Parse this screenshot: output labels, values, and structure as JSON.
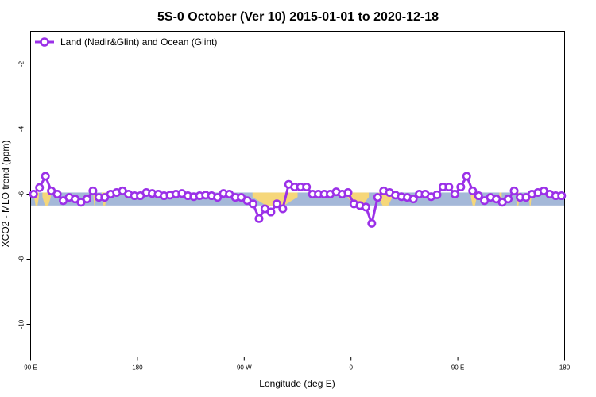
{
  "chart_data": {
    "type": "line",
    "title": "5S-0 October (Ver 10)   2015-01-01 to 2020-12-18",
    "xlabel": "Longitude (deg E)",
    "ylabel": "XCO2 - MLO trend (ppm)",
    "xlim": [
      90,
      540
    ],
    "ylim": [
      -11,
      -1.0
    ],
    "x_ticks": [
      {
        "value": 90,
        "label": "90 E"
      },
      {
        "value": 180,
        "label": "180"
      },
      {
        "value": 270,
        "label": "90 W"
      },
      {
        "value": 360,
        "label": "0"
      },
      {
        "value": 450,
        "label": "90 E"
      },
      {
        "value": 540,
        "label": "180"
      }
    ],
    "y_ticks": [
      {
        "value": -2,
        "label": "-2"
      },
      {
        "value": -4,
        "label": "-4"
      },
      {
        "value": -6,
        "label": "-6"
      },
      {
        "value": -8,
        "label": "-8"
      },
      {
        "value": -10,
        "label": "-10"
      }
    ],
    "legend": {
      "position": "top-left",
      "entries": [
        "Land (Nadir&Glint) and Ocean (Glint)"
      ]
    },
    "colors": {
      "series": "#9b30e8",
      "ocean_band": "#a4b8d8",
      "land_band": "#f6d77a"
    },
    "band": {
      "ymin": -6.35,
      "ymax": -5.95
    },
    "land_segments": [
      [
        93,
        97
      ],
      [
        100,
        107
      ],
      [
        143,
        145
      ],
      [
        150,
        154
      ],
      [
        277,
        315
      ],
      [
        357,
        375
      ],
      [
        383,
        395
      ],
      [
        461,
        466
      ],
      [
        485,
        487
      ],
      [
        499,
        502
      ],
      [
        510,
        512
      ]
    ],
    "series": [
      {
        "name": "Land (Nadir&Glint) and Ocean (Glint)",
        "x": [
          92.5,
          97.5,
          102.5,
          107.5,
          112.5,
          117.5,
          122.5,
          127.5,
          132.5,
          137.5,
          142.5,
          147.5,
          152.5,
          157.5,
          162.5,
          167.5,
          172.5,
          177.5,
          182.5,
          187.5,
          192.5,
          197.5,
          202.5,
          207.5,
          212.5,
          217.5,
          222.5,
          227.5,
          232.5,
          237.5,
          242.5,
          247.5,
          252.5,
          257.5,
          262.5,
          267.5,
          272.5,
          277.5,
          282.5,
          287.5,
          292.5,
          297.5,
          302.5,
          307.5,
          312.5,
          317.5,
          322.5,
          327.5,
          332.5,
          337.5,
          342.5,
          347.5,
          352.5,
          357.5,
          362.5,
          367.5,
          372.5,
          377.5,
          382.5,
          387.5,
          392.5,
          397.5,
          402.5,
          407.5,
          412.5,
          417.5,
          422.5,
          427.5,
          432.5,
          437.5,
          442.5,
          447.5,
          452.5,
          457.5,
          462.5,
          467.5,
          472.5,
          477.5,
          482.5,
          487.5,
          492.5,
          497.5,
          502.5,
          507.5,
          512.5,
          517.5,
          522.5,
          527.5,
          532.5,
          537.5
        ],
        "values": [
          -6.0,
          -5.8,
          -5.45,
          -5.9,
          -6.0,
          -6.2,
          -6.1,
          -6.15,
          -6.25,
          -6.15,
          -5.9,
          -6.1,
          -6.1,
          -6.0,
          -5.95,
          -5.9,
          -6.0,
          -6.05,
          -6.05,
          -5.95,
          -5.98,
          -6.0,
          -6.05,
          -6.03,
          -6.0,
          -5.98,
          -6.05,
          -6.08,
          -6.05,
          -6.03,
          -6.05,
          -6.1,
          -5.98,
          -6.0,
          -6.1,
          -6.1,
          -6.2,
          -6.3,
          -6.75,
          -6.45,
          -6.55,
          -6.3,
          -6.45,
          -5.7,
          -5.78,
          -5.78,
          -5.78,
          -6.0,
          -6.0,
          -6.0,
          -6.0,
          -5.93,
          -6.0,
          -5.95,
          -6.3,
          -6.35,
          -6.4,
          -6.9,
          -6.1,
          -5.9,
          -5.95,
          -6.03,
          -6.08,
          -6.1,
          -6.15,
          -6.0,
          -6.0,
          -6.08,
          -6.02,
          -5.78,
          -5.78,
          -6.0,
          -5.78,
          -5.45,
          -5.9,
          -6.05,
          -6.2,
          -6.1,
          -6.15,
          -6.25,
          -6.15,
          -5.9,
          -6.1,
          -6.1,
          -6.0,
          -5.95,
          -5.9,
          -6.0,
          -6.05,
          -6.05
        ]
      }
    ]
  }
}
